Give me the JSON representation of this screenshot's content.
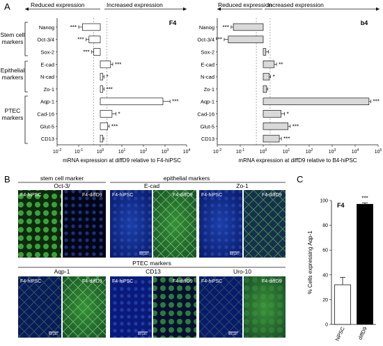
{
  "panels": {
    "a_label": "A",
    "b_label": "B",
    "c_label": "C"
  },
  "section_a": {
    "reduced": "Reduced expression",
    "increased": "Increased expression",
    "groups": [
      {
        "label1": "Stem cell",
        "label2": "markers"
      },
      {
        "label1": "Epithelial",
        "label2": "markers"
      },
      {
        "label1": "PTEC",
        "label2": "markers"
      }
    ]
  },
  "chart_data": [
    {
      "type": "bar",
      "orientation": "horizontal",
      "title": "F4",
      "xlabel": "mRNA expression at diffD9 relative to F4-hiPSC",
      "xscale": "log",
      "xlim": [
        0.01,
        10000
      ],
      "xticks": [
        "10-2",
        "10-1",
        "100",
        "101",
        "102",
        "103",
        "104"
      ],
      "categories": [
        "Nanog",
        "Oct-3/4",
        "Sox-2",
        "E-cad",
        "N-cad",
        "Zo-1",
        "Aqp-1",
        "Cad-16",
        "Glut-5",
        "CD13"
      ],
      "values": [
        0.15,
        0.3,
        0.5,
        3,
        1.3,
        1.3,
        800,
        3.5,
        2.2,
        1.3
      ],
      "errors": [
        0.05,
        0.08,
        0.1,
        0.8,
        0.2,
        0.2,
        900,
        1.8,
        0.4,
        0.15
      ],
      "significance": [
        "***",
        "***",
        "***",
        "***",
        "*",
        "***",
        "***",
        "*",
        "***",
        ""
      ],
      "bar_color": "#ffffff"
    },
    {
      "type": "bar",
      "orientation": "horizontal",
      "title": "b4",
      "xlabel": "mRNA expression at diffD9 relative to B4-hiPSC",
      "xscale": "log",
      "xlim": [
        0.01,
        100000
      ],
      "xticks": [
        "10-2",
        "10-1",
        "100",
        "101",
        "102",
        "103",
        "104",
        "105"
      ],
      "categories": [
        "Nanog",
        "Oct-3/4",
        "Sox-2",
        "E-cad",
        "N-cad",
        "Zo-1",
        "Aqp-1",
        "Cad-16",
        "Glut-5",
        "CD13"
      ],
      "values": [
        0.05,
        0.03,
        1.3,
        3,
        1.8,
        1.4,
        40000,
        6,
        12,
        5
      ],
      "errors": [
        0.01,
        0.01,
        0.4,
        0.8,
        0.3,
        0.2,
        8000,
        2.5,
        3,
        1.2
      ],
      "significance": [
        "***",
        "***",
        "",
        "**",
        "*",
        "",
        "***",
        "*",
        "***",
        "***"
      ],
      "bar_color": "#d9d9d9"
    },
    {
      "type": "bar",
      "title": "F4",
      "ylabel": "% Cells expressing Aqp-1",
      "ylim": [
        0,
        100
      ],
      "yticks": [
        "0",
        "20",
        "40",
        "60",
        "80",
        "100"
      ],
      "categories": [
        "hiPSC",
        "diffD9"
      ],
      "values": [
        32,
        97
      ],
      "errors": [
        6,
        1
      ],
      "significance": [
        "",
        "***"
      ],
      "colors": [
        "#ffffff",
        "#000000"
      ]
    }
  ],
  "section_b": {
    "stem_header": "stem cell marker",
    "stem_marker": "Oct-3/",
    "epi_header": "epithelial markers",
    "epi_markers": [
      "E-cad",
      "Zo-1"
    ],
    "ptec_header": "PTEC markers",
    "ptec_markers": [
      "Aqp-1",
      "CD13",
      "Uro-10"
    ],
    "tag_hipsc": "F4-hiPSC",
    "tag_diff": "F4-diffD9",
    "scale": "50 µm"
  }
}
